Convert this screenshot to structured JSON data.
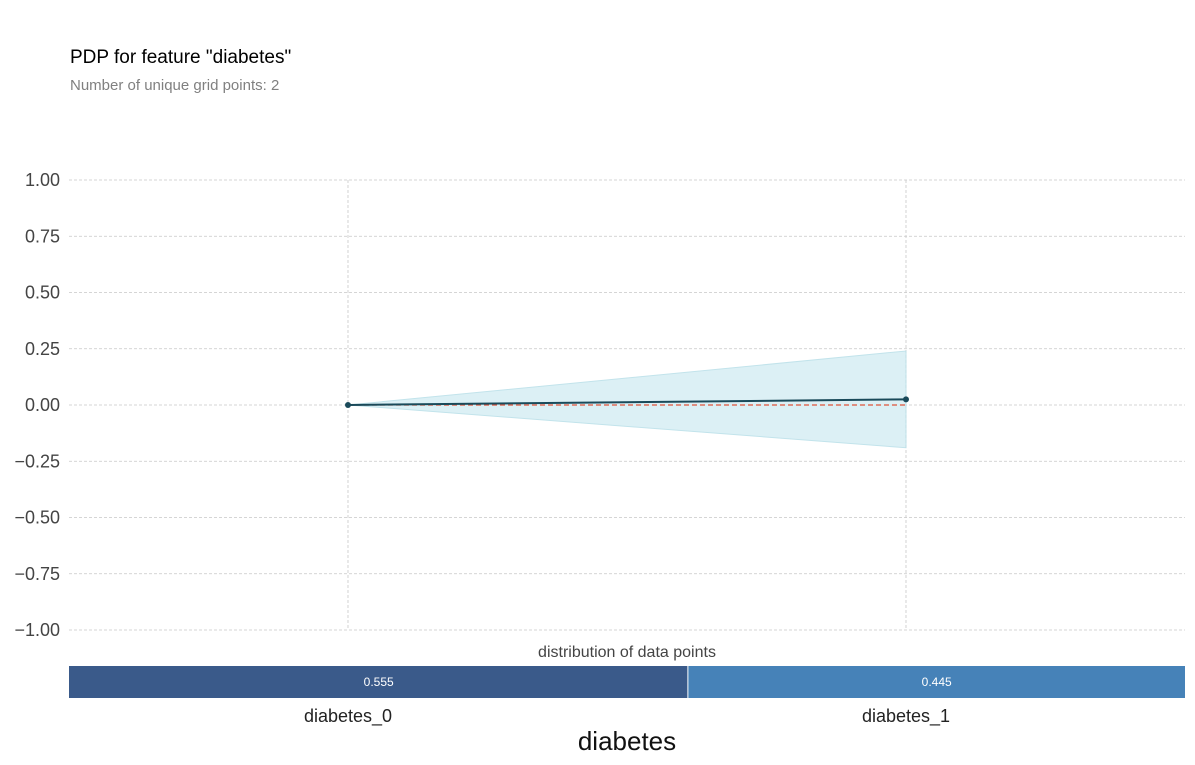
{
  "title": "PDP for feature \"diabetes\"",
  "subtitle": "Number of unique grid points: 2",
  "colors": {
    "line": "#1a4a5a",
    "band": "#d6eef4",
    "band_edge": "#b8dfe8",
    "baseline": "#e0533b",
    "grid": "#c8c8c8",
    "dist": [
      "#3a5a8a",
      "#4682b8"
    ]
  },
  "chart_data": {
    "type": "line",
    "title": "PDP for feature \"diabetes\"",
    "subtitle": "Number of unique grid points: 2",
    "categories": [
      "diabetes_0",
      "diabetes_1"
    ],
    "xlabel": "diabetes",
    "ylim": [
      -1.0,
      1.0
    ],
    "yticks": [
      1.0,
      0.75,
      0.5,
      0.25,
      0.0,
      -0.25,
      -0.5,
      -0.75,
      -1.0
    ],
    "ytick_labels": [
      "1.00",
      "0.75",
      "0.50",
      "0.25",
      "0.00",
      "−0.25",
      "−0.50",
      "−0.75",
      "−1.00"
    ],
    "grid": true,
    "series": [
      {
        "values": [
          0.0,
          0.025
        ]
      }
    ],
    "band": {
      "lower": [
        0.0,
        -0.19
      ],
      "upper": [
        0.0,
        0.24
      ]
    },
    "baseline": 0.0,
    "distribution": {
      "title": "distribution of data points",
      "values": [
        0.555,
        0.445
      ],
      "labels": [
        "0.555",
        "0.445"
      ]
    }
  }
}
